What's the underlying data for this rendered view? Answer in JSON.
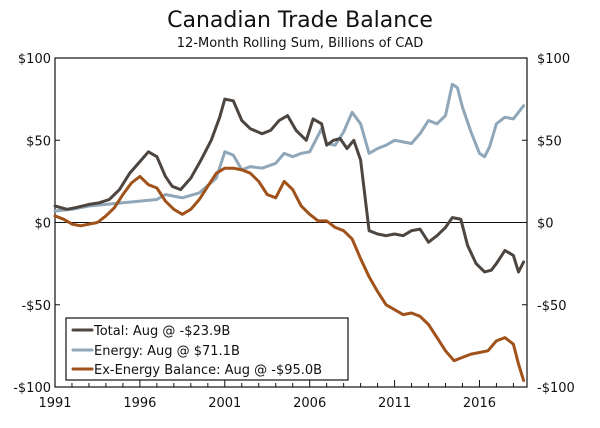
{
  "chart_data": {
    "type": "line",
    "title": "Canadian Trade Balance",
    "subtitle": "12-Month Rolling Sum, Billions of CAD",
    "xlabel": "",
    "ylabel": "",
    "xlim": [
      1991,
      2018.8
    ],
    "ylim": [
      -100,
      100
    ],
    "x_ticks": [
      1991,
      1996,
      2001,
      2006,
      2011,
      2016
    ],
    "x_tick_labels": [
      "1991",
      "1996",
      "2001",
      "2006",
      "2011",
      "2016"
    ],
    "y_ticks": [
      100,
      50,
      0,
      -50,
      -100
    ],
    "y_tick_labels_left": [
      "$100",
      "$50",
      "$0",
      "-$50",
      "-$100"
    ],
    "y_tick_labels_right": [
      "$100",
      "$50",
      "$0",
      "-$50",
      "-$100"
    ],
    "legend_position": "bottom-left",
    "series": [
      {
        "name": "Total: Aug @ -$23.9B",
        "color": "#4d4540",
        "x": [
          1991.0,
          1991.7,
          1992.2,
          1993.0,
          1993.6,
          1994.2,
          1994.8,
          1995.4,
          1996.0,
          1996.5,
          1997.0,
          1997.5,
          1997.9,
          1998.4,
          1999.0,
          1999.6,
          2000.2,
          2000.7,
          2001.0,
          2001.5,
          2002.0,
          2002.5,
          2003.2,
          2003.7,
          2004.2,
          2004.7,
          2005.2,
          2005.8,
          2006.2,
          2006.7,
          2007.0,
          2007.4,
          2007.8,
          2008.2,
          2008.6,
          2009.0,
          2009.5,
          2010.0,
          2010.5,
          2011.0,
          2011.5,
          2012.0,
          2012.5,
          2013.0,
          2013.5,
          2014.0,
          2014.4,
          2014.9,
          2015.3,
          2015.8,
          2016.3,
          2016.7,
          2017.0,
          2017.5,
          2018.0,
          2018.3,
          2018.6
        ],
        "values": [
          10,
          8,
          9,
          11,
          12,
          14,
          20,
          30,
          37,
          43,
          40,
          28,
          22,
          20,
          27,
          38,
          50,
          64,
          75,
          74,
          62,
          57,
          54,
          56,
          62,
          65,
          56,
          50,
          63,
          60,
          47,
          50,
          51,
          45,
          50,
          38,
          -5,
          -7,
          -8,
          -7,
          -8,
          -5,
          -4,
          -12,
          -8,
          -3,
          3,
          2,
          -14,
          -25,
          -30,
          -29,
          -25,
          -17,
          -20,
          -30,
          -24
        ]
      },
      {
        "name": "Energy: Aug @ $71.1B",
        "color": "#8fa7b8",
        "x": [
          1991.0,
          1992.0,
          1993.0,
          1994.0,
          1995.0,
          1996.0,
          1997.0,
          1997.5,
          1998.5,
          1999.5,
          2000.5,
          2001.0,
          2001.5,
          2002.0,
          2002.5,
          2003.2,
          2004.0,
          2004.5,
          2005.0,
          2005.5,
          2006.0,
          2006.7,
          2007.0,
          2007.5,
          2008.0,
          2008.5,
          2009.0,
          2009.5,
          2010.0,
          2010.5,
          2011.0,
          2011.5,
          2012.0,
          2012.5,
          2013.0,
          2013.5,
          2014.0,
          2014.4,
          2014.7,
          2015.0,
          2015.5,
          2016.0,
          2016.3,
          2016.6,
          2017.0,
          2017.5,
          2018.0,
          2018.6
        ],
        "values": [
          7,
          8,
          10,
          11,
          12,
          13,
          14,
          17,
          15,
          18,
          27,
          43,
          41,
          32,
          34,
          33,
          36,
          42,
          40,
          42,
          43,
          57,
          48,
          47,
          55,
          67,
          60,
          42,
          45,
          47,
          50,
          49,
          48,
          54,
          62,
          60,
          65,
          84,
          82,
          70,
          55,
          42,
          40,
          46,
          60,
          64,
          63,
          71
        ]
      },
      {
        "name": "Ex-Energy Balance: Aug @ -$95.0B",
        "color": "#a0521a",
        "x": [
          1991.0,
          1991.5,
          1992.0,
          1992.5,
          1993.0,
          1993.5,
          1994.0,
          1994.5,
          1995.0,
          1995.5,
          1996.0,
          1996.5,
          1997.0,
          1997.5,
          1998.0,
          1998.5,
          1999.0,
          1999.5,
          2000.0,
          2000.5,
          2001.0,
          2001.5,
          2002.0,
          2002.5,
          2003.0,
          2003.5,
          2004.0,
          2004.5,
          2005.0,
          2005.5,
          2006.0,
          2006.5,
          2007.0,
          2007.5,
          2008.0,
          2008.5,
          2009.0,
          2009.5,
          2010.0,
          2010.5,
          2011.0,
          2011.5,
          2012.0,
          2012.5,
          2013.0,
          2013.5,
          2014.0,
          2014.5,
          2015.0,
          2015.5,
          2016.0,
          2016.5,
          2017.0,
          2017.5,
          2018.0,
          2018.3,
          2018.6
        ],
        "values": [
          4,
          2,
          -1,
          -2,
          -1,
          0,
          4,
          9,
          17,
          24,
          28,
          23,
          21,
          13,
          8,
          5,
          8,
          14,
          22,
          30,
          33,
          33,
          32,
          30,
          25,
          17,
          15,
          25,
          20,
          10,
          5,
          1,
          1,
          -3,
          -5,
          -10,
          -22,
          -33,
          -42,
          -50,
          -53,
          -56,
          -55,
          -57,
          -62,
          -70,
          -78,
          -84,
          -82,
          -80,
          -79,
          -78,
          -72,
          -70,
          -74,
          -86,
          -96
        ]
      }
    ]
  }
}
